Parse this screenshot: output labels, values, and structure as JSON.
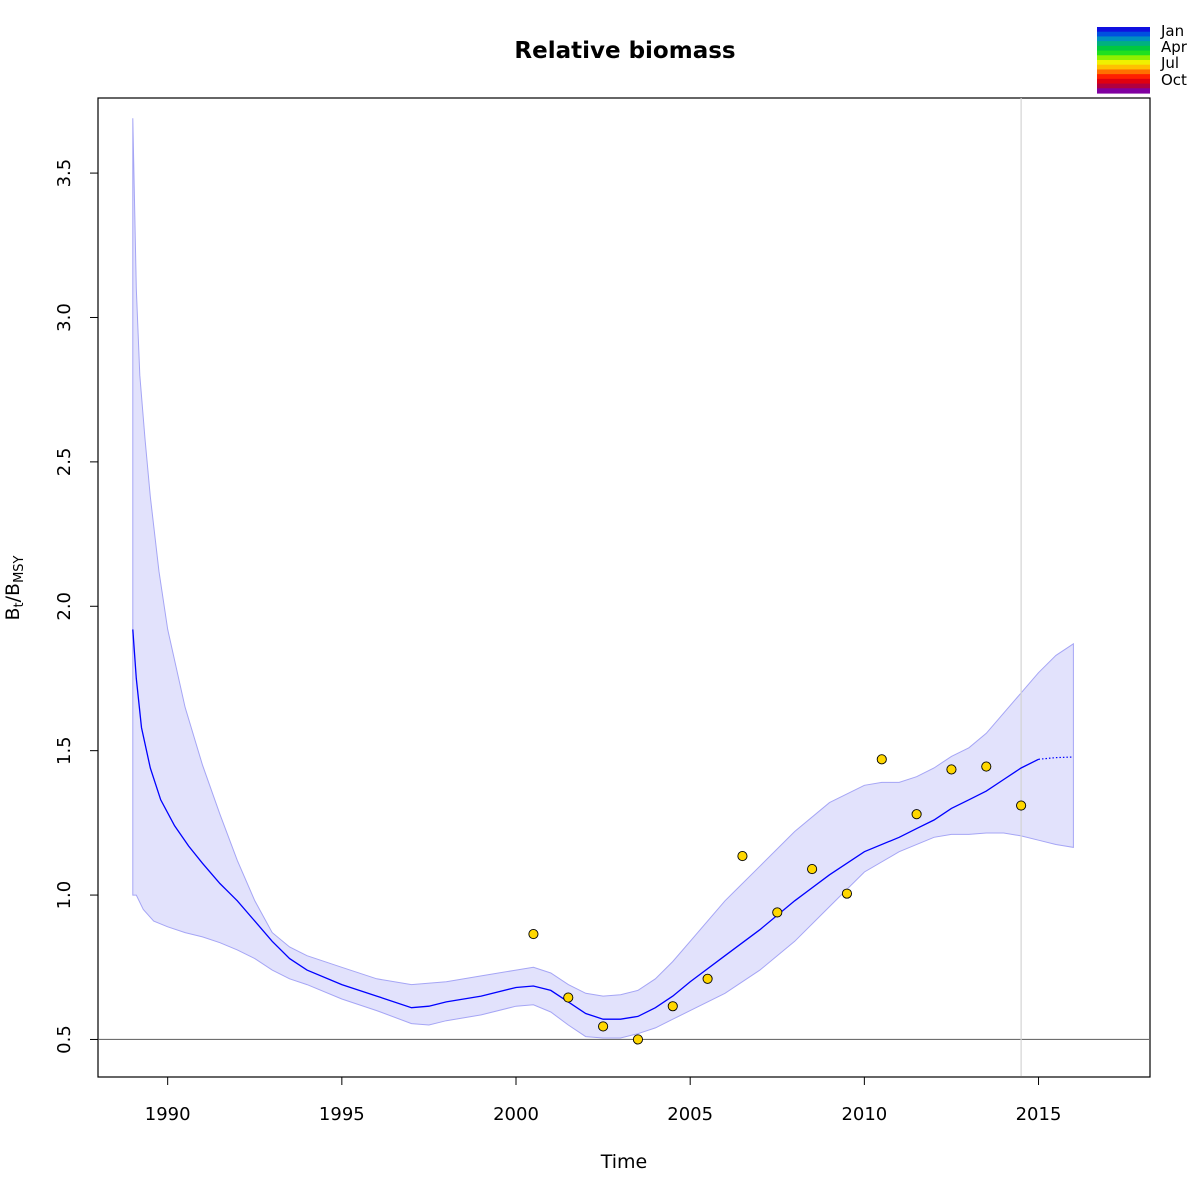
{
  "chart_data": {
    "type": "line",
    "title": "Relative biomass",
    "xlabel": "Time",
    "ylabel": {
      "main": "B",
      "sub1": "t",
      "sep": "/B",
      "sub2": "MSY"
    },
    "xlim": [
      1988,
      2018.2
    ],
    "ylim": [
      0.37,
      3.76
    ],
    "x_ticks": [
      1990,
      1995,
      2000,
      2005,
      2010,
      2015
    ],
    "x_tick_labels": [
      "1990",
      "1995",
      "2000",
      "2005",
      "2010",
      "2015"
    ],
    "y_ticks": [
      0.5,
      1.0,
      1.5,
      2.0,
      2.5,
      3.0,
      3.5
    ],
    "y_tick_labels": [
      "0.5",
      "1.0",
      "1.5",
      "2.0",
      "2.5",
      "3.0",
      "3.5"
    ],
    "reference_line_y": 0.5,
    "vertical_marker_x": 2014.5,
    "estimate": {
      "x": [
        1989.0,
        1989.1,
        1989.25,
        1989.5,
        1989.8,
        1990.2,
        1990.6,
        1991.0,
        1991.5,
        1992.0,
        1992.5,
        1993.0,
        1993.5,
        1994.0,
        1995.0,
        1996.0,
        1997.0,
        1997.5,
        1998.0,
        1999.0,
        2000.0,
        2000.5,
        2001.0,
        2001.5,
        2002.0,
        2002.5,
        2003.0,
        2003.5,
        2004.0,
        2004.5,
        2005.0,
        2006.0,
        2007.0,
        2008.0,
        2009.0,
        2010.0,
        2011.0,
        2011.5,
        2012.0,
        2012.5,
        2013.0,
        2013.5,
        2014.0,
        2014.5,
        2015.0
      ],
      "y": [
        1.92,
        1.75,
        1.58,
        1.44,
        1.33,
        1.24,
        1.17,
        1.11,
        1.04,
        0.98,
        0.91,
        0.84,
        0.78,
        0.74,
        0.69,
        0.65,
        0.61,
        0.615,
        0.63,
        0.65,
        0.68,
        0.685,
        0.67,
        0.63,
        0.59,
        0.57,
        0.57,
        0.58,
        0.61,
        0.65,
        0.7,
        0.79,
        0.88,
        0.98,
        1.07,
        1.15,
        1.2,
        1.23,
        1.26,
        1.3,
        1.33,
        1.36,
        1.4,
        1.44,
        1.47
      ]
    },
    "forecast": {
      "x": [
        2015.0,
        2015.5,
        2016.0
      ],
      "y": [
        1.47,
        1.476,
        1.478
      ]
    },
    "ci_upper": {
      "x": [
        1989.0,
        1989.1,
        1989.2,
        1989.35,
        1989.5,
        1989.75,
        1990.0,
        1990.5,
        1991.0,
        1991.5,
        1992.0,
        1992.5,
        1993.0,
        1993.5,
        1994.0,
        1995.0,
        1996.0,
        1997.0,
        1998.0,
        1999.0,
        2000.0,
        2000.5,
        2001.0,
        2001.5,
        2002.0,
        2002.5,
        2003.0,
        2003.5,
        2004.0,
        2004.5,
        2005.0,
        2006.0,
        2007.0,
        2008.0,
        2009.0,
        2010.0,
        2010.5,
        2011.0,
        2011.5,
        2012.0,
        2012.5,
        2013.0,
        2013.5,
        2014.0,
        2014.5,
        2015.0,
        2015.5,
        2016.0
      ],
      "y": [
        3.69,
        3.1,
        2.8,
        2.58,
        2.38,
        2.12,
        1.92,
        1.65,
        1.45,
        1.28,
        1.12,
        0.98,
        0.87,
        0.82,
        0.79,
        0.75,
        0.71,
        0.69,
        0.7,
        0.72,
        0.74,
        0.75,
        0.73,
        0.69,
        0.66,
        0.65,
        0.655,
        0.67,
        0.71,
        0.77,
        0.84,
        0.98,
        1.1,
        1.22,
        1.32,
        1.38,
        1.39,
        1.39,
        1.41,
        1.44,
        1.48,
        1.51,
        1.56,
        1.63,
        1.7,
        1.77,
        1.83,
        1.87
      ]
    },
    "ci_lower": {
      "x": [
        1989.0,
        1989.1,
        1989.3,
        1989.6,
        1990.0,
        1990.5,
        1991.0,
        1991.5,
        1992.0,
        1992.5,
        1993.0,
        1993.5,
        1994.0,
        1995.0,
        1996.0,
        1997.0,
        1997.5,
        1998.0,
        1999.0,
        2000.0,
        2000.5,
        2001.0,
        2001.5,
        2002.0,
        2002.5,
        2003.0,
        2003.5,
        2004.0,
        2004.5,
        2005.0,
        2006.0,
        2007.0,
        2008.0,
        2009.0,
        2010.0,
        2011.0,
        2012.0,
        2012.5,
        2013.0,
        2013.5,
        2014.0,
        2014.5,
        2015.0,
        2015.5,
        2016.0
      ],
      "y": [
        1.0,
        1.0,
        0.95,
        0.91,
        0.89,
        0.87,
        0.855,
        0.835,
        0.81,
        0.78,
        0.74,
        0.71,
        0.69,
        0.64,
        0.6,
        0.555,
        0.55,
        0.565,
        0.585,
        0.615,
        0.62,
        0.595,
        0.55,
        0.51,
        0.505,
        0.505,
        0.52,
        0.54,
        0.57,
        0.6,
        0.66,
        0.74,
        0.84,
        0.96,
        1.08,
        1.15,
        1.2,
        1.21,
        1.21,
        1.215,
        1.215,
        1.205,
        1.19,
        1.175,
        1.165
      ]
    },
    "observations": {
      "x": [
        2000.5,
        2001.5,
        2002.5,
        2003.5,
        2004.5,
        2005.5,
        2006.5,
        2007.5,
        2008.5,
        2009.5,
        2010.5,
        2011.5,
        2012.5,
        2013.5,
        2014.5
      ],
      "y": [
        0.865,
        0.645,
        0.545,
        0.5,
        0.615,
        0.71,
        1.135,
        0.94,
        1.09,
        1.005,
        1.47,
        1.28,
        1.435,
        1.445,
        1.31
      ]
    },
    "colors": {
      "estimate": "#0000ff",
      "ci_fill": "#e2e2fc",
      "ci_border": "#a5a5f5",
      "observation_fill": "#ffd700",
      "reference_line": "#6e6e6e",
      "vertical_marker": "#d3d3d3"
    },
    "legend": {
      "placement": "top-right",
      "labels": [
        "Jan",
        "Apr",
        "Jul",
        "Oct"
      ],
      "colors": [
        "#1010e0",
        "#0050e0",
        "#0090c0",
        "#00b080",
        "#00c840",
        "#20e020",
        "#90f000",
        "#f0f000",
        "#ffc000",
        "#ff7000",
        "#ff2000",
        "#e00010",
        "#b00040",
        "#8000a0"
      ]
    },
    "grid": false
  }
}
